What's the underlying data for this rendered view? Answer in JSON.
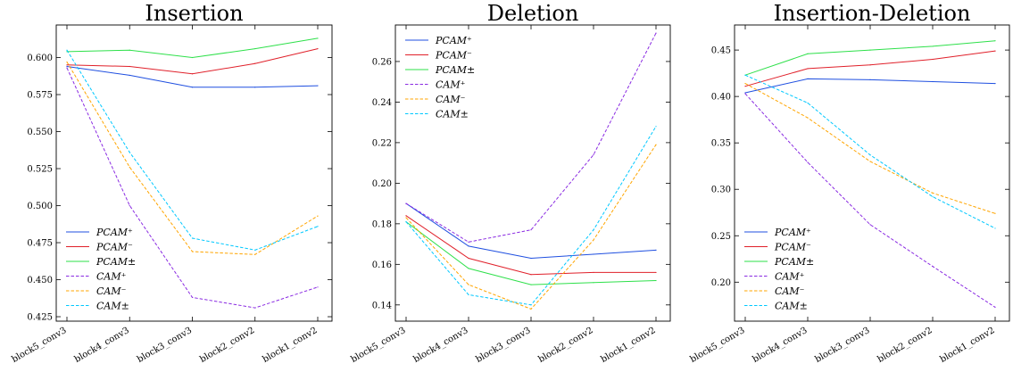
{
  "chart_data": [
    {
      "type": "line",
      "title": "Insertion",
      "categories": [
        "block5_conv3",
        "block4_conv3",
        "block3_conv3",
        "block2_conv2",
        "block1_conv2"
      ],
      "ylim": [
        0.422,
        0.622
      ],
      "yticks": [
        "0.425",
        "0.450",
        "0.475",
        "0.500",
        "0.525",
        "0.550",
        "0.575",
        "0.600"
      ],
      "legend_position": "lower-left",
      "series": [
        {
          "name": "PCAM⁺",
          "color": "#1f4fe0",
          "dashed": false,
          "values": [
            0.594,
            0.588,
            0.58,
            0.58,
            0.581
          ]
        },
        {
          "name": "PCAM⁻",
          "color": "#e0202a",
          "dashed": false,
          "values": [
            0.595,
            0.594,
            0.589,
            0.596,
            0.606
          ]
        },
        {
          "name": "PCAM±",
          "color": "#2ee04a",
          "dashed": false,
          "values": [
            0.604,
            0.605,
            0.6,
            0.606,
            0.613
          ]
        },
        {
          "name": "CAM⁺",
          "color": "#8a2be2",
          "dashed": true,
          "values": [
            0.593,
            0.5,
            0.438,
            0.431,
            0.445
          ]
        },
        {
          "name": "CAM⁻",
          "color": "#ffa500",
          "dashed": true,
          "values": [
            0.597,
            0.526,
            0.469,
            0.467,
            0.493
          ]
        },
        {
          "name": "CAM±",
          "color": "#00c8ff",
          "dashed": true,
          "values": [
            0.605,
            0.536,
            0.478,
            0.47,
            0.486
          ]
        }
      ]
    },
    {
      "type": "line",
      "title": "Deletion",
      "categories": [
        "block5_conv3",
        "block4_conv3",
        "block3_conv3",
        "block2_conv2",
        "block1_conv2"
      ],
      "ylim": [
        0.132,
        0.278
      ],
      "yticks": [
        "0.14",
        "0.16",
        "0.18",
        "0.20",
        "0.22",
        "0.24",
        "0.26"
      ],
      "legend_position": "upper-left",
      "series": [
        {
          "name": "PCAM⁺",
          "color": "#1f4fe0",
          "dashed": false,
          "values": [
            0.19,
            0.169,
            0.163,
            0.165,
            0.167
          ]
        },
        {
          "name": "PCAM⁻",
          "color": "#e0202a",
          "dashed": false,
          "values": [
            0.184,
            0.163,
            0.155,
            0.156,
            0.156
          ]
        },
        {
          "name": "PCAM±",
          "color": "#2ee04a",
          "dashed": false,
          "values": [
            0.181,
            0.158,
            0.15,
            0.151,
            0.152
          ]
        },
        {
          "name": "CAM⁺",
          "color": "#8a2be2",
          "dashed": true,
          "values": [
            0.19,
            0.171,
            0.177,
            0.214,
            0.274
          ]
        },
        {
          "name": "CAM⁻",
          "color": "#ffa500",
          "dashed": true,
          "values": [
            0.183,
            0.15,
            0.138,
            0.172,
            0.219
          ]
        },
        {
          "name": "CAM±",
          "color": "#00c8ff",
          "dashed": true,
          "values": [
            0.181,
            0.145,
            0.14,
            0.177,
            0.228
          ]
        }
      ]
    },
    {
      "type": "line",
      "title": "Insertion-Deletion",
      "categories": [
        "block5_conv3",
        "block4_conv3",
        "block3_conv3",
        "block2_conv2",
        "block1_conv2"
      ],
      "ylim": [
        0.158,
        0.477
      ],
      "yticks": [
        "0.20",
        "0.25",
        "0.30",
        "0.35",
        "0.40",
        "0.45"
      ],
      "legend_position": "lower-left",
      "series": [
        {
          "name": "PCAM⁺",
          "color": "#1f4fe0",
          "dashed": false,
          "values": [
            0.404,
            0.419,
            0.418,
            0.416,
            0.414
          ]
        },
        {
          "name": "PCAM⁻",
          "color": "#e0202a",
          "dashed": false,
          "values": [
            0.411,
            0.43,
            0.434,
            0.44,
            0.449
          ]
        },
        {
          "name": "PCAM±",
          "color": "#2ee04a",
          "dashed": false,
          "values": [
            0.423,
            0.446,
            0.45,
            0.454,
            0.46
          ]
        },
        {
          "name": "CAM⁺",
          "color": "#8a2be2",
          "dashed": true,
          "values": [
            0.403,
            0.329,
            0.262,
            0.217,
            0.173
          ]
        },
        {
          "name": "CAM⁻",
          "color": "#ffa500",
          "dashed": true,
          "values": [
            0.414,
            0.377,
            0.33,
            0.296,
            0.274
          ]
        },
        {
          "name": "CAM±",
          "color": "#00c8ff",
          "dashed": true,
          "values": [
            0.423,
            0.393,
            0.337,
            0.292,
            0.258
          ]
        }
      ]
    }
  ]
}
